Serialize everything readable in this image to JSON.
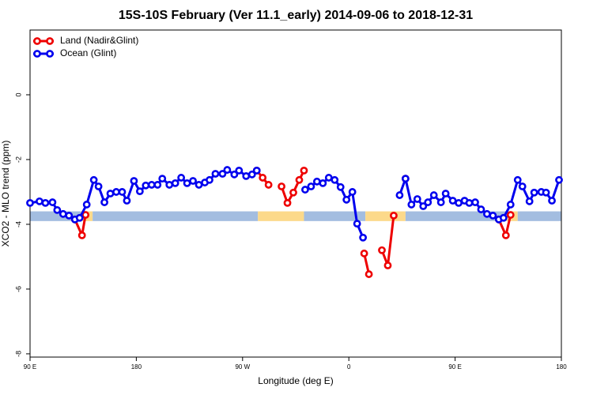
{
  "chart_data": {
    "type": "line",
    "title": "15S-10S February (Ver 11.1_early)   2014-09-06 to 2018-12-31",
    "x_label": "Longitude (deg E)",
    "y_label": "XCO2 - MLO trend (ppm)",
    "xlim": [
      90,
      540
    ],
    "ylim": [
      -8.1,
      2
    ],
    "xticks": [
      {
        "value": 90,
        "label": "90 E"
      },
      180,
      {
        "value": 270,
        "label": "90 W"
      },
      {
        "value": 360,
        "label": "0"
      },
      {
        "value": 450,
        "label": "90 E"
      },
      {
        "value": 540,
        "label": "180"
      }
    ],
    "yticks": [
      -8,
      -6,
      -4,
      -2,
      0
    ],
    "legend": "top-left",
    "band_ylim": [
      -3.9,
      -3.6
    ],
    "bands": [
      {
        "x": [
          90,
          133
        ],
        "color": "#a3bde0"
      },
      {
        "x": [
          133,
          143
        ],
        "color": "#fcd98a"
      },
      {
        "x": [
          143,
          283
        ],
        "color": "#a3bde0"
      },
      {
        "x": [
          283,
          322
        ],
        "color": "#fcd98a"
      },
      {
        "x": [
          322,
          374
        ],
        "color": "#a3bde0"
      },
      {
        "x": [
          374,
          408
        ],
        "color": "#fcd98a"
      },
      {
        "x": [
          408,
          493
        ],
        "color": "#a3bde0"
      },
      {
        "x": [
          493,
          503
        ],
        "color": "#fcd98a"
      },
      {
        "x": [
          503,
          540
        ],
        "color": "#a3bde0"
      }
    ],
    "series": [
      {
        "name": "Land (Nadir&Glint)",
        "color": "#ee0000",
        "x": [
          128,
          134,
          137,
          null,
          282,
          287,
          292,
          null,
          303,
          308,
          313,
          318,
          322,
          null,
          373,
          377,
          null,
          388,
          393,
          398,
          null,
          408,
          null,
          487,
          493,
          497
        ],
        "values": [
          -3.85,
          -4.34,
          -3.71,
          null,
          -2.34,
          -2.56,
          -2.78,
          null,
          -2.83,
          -3.34,
          -3.02,
          -2.63,
          -2.34,
          null,
          -4.9,
          -5.54,
          null,
          -4.8,
          -5.27,
          -3.73,
          null,
          -2.59,
          null,
          -3.85,
          -4.34,
          -3.71
        ]
      },
      {
        "name": "Ocean (Glint)",
        "color": "#0000ee",
        "x": [
          90,
          98,
          103,
          109,
          113,
          118,
          123,
          128,
          132,
          138,
          144,
          148,
          153,
          158,
          163,
          168,
          172,
          178,
          183,
          188,
          193,
          198,
          202,
          208,
          213,
          218,
          223,
          228,
          233,
          238,
          242,
          247,
          253,
          257,
          263,
          267,
          273,
          278,
          282,
          null,
          323,
          328,
          333,
          338,
          343,
          348,
          353,
          358,
          363,
          367,
          372,
          null,
          403,
          408,
          413,
          418,
          423,
          427,
          432,
          438,
          442,
          448,
          453,
          458,
          462,
          467,
          472,
          477,
          482,
          487,
          491,
          497,
          503,
          507,
          513,
          517,
          523,
          527,
          532,
          538
        ],
        "values": [
          -3.34,
          -3.29,
          -3.34,
          -3.32,
          -3.56,
          -3.68,
          -3.73,
          -3.85,
          -3.8,
          -3.39,
          -2.63,
          -2.83,
          -3.32,
          -3.05,
          -3.0,
          -3.0,
          -3.27,
          -2.66,
          -2.98,
          -2.8,
          -2.78,
          -2.78,
          -2.59,
          -2.78,
          -2.73,
          -2.56,
          -2.73,
          -2.66,
          -2.78,
          -2.71,
          -2.63,
          -2.44,
          -2.44,
          -2.32,
          -2.46,
          -2.34,
          -2.51,
          -2.46,
          -2.34,
          null,
          -2.93,
          -2.83,
          -2.68,
          -2.73,
          -2.56,
          -2.63,
          -2.85,
          -3.24,
          -3.0,
          -3.98,
          -4.41,
          null,
          -3.1,
          -2.59,
          -3.39,
          -3.22,
          -3.44,
          -3.32,
          -3.1,
          -3.32,
          -3.05,
          -3.27,
          -3.34,
          -3.27,
          -3.34,
          -3.32,
          -3.54,
          -3.68,
          -3.73,
          -3.85,
          -3.8,
          -3.39,
          -2.63,
          -2.83,
          -3.29,
          -3.02,
          -3.0,
          -3.02,
          -3.27,
          -2.63
        ]
      }
    ]
  }
}
